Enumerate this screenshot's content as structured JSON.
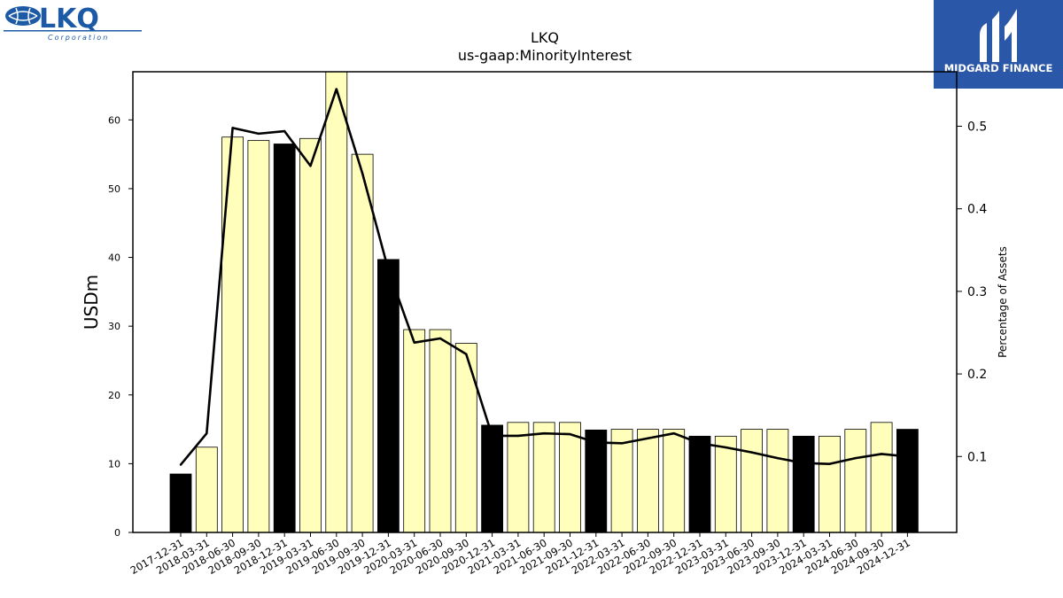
{
  "brand": {
    "company_logo_text": "LKQ",
    "company_logo_subtext": "Corporation",
    "watermark_text": "MIDGARD FINANCE"
  },
  "colors": {
    "annual_bar": "#000000",
    "quarter_bar": "#ffffbb",
    "line": "#000000",
    "watermark_bg": "#2b57a8",
    "logo_blue": "#1d5aa6"
  },
  "chart_data": {
    "type": "bar",
    "title": "LKQ",
    "subtitle": "us-gaap:MinorityInterest",
    "ylabel": "USDm",
    "y2label": "Percentage of Assets",
    "ylim": [
      0,
      67
    ],
    "y2lim": [
      0.008,
      0.566
    ],
    "yticks": [
      0,
      10,
      20,
      30,
      40,
      50,
      60
    ],
    "y2ticks": [
      0.1,
      0.2,
      0.3,
      0.4,
      0.5
    ],
    "categories": [
      "2017-12-31",
      "2018-03-31",
      "2018-06-30",
      "2018-09-30",
      "2018-12-31",
      "2019-03-31",
      "2019-06-30",
      "2019-09-30",
      "2019-12-31",
      "2020-03-31",
      "2020-06-30",
      "2020-09-30",
      "2020-12-31",
      "2021-03-31",
      "2021-06-30",
      "2021-09-30",
      "2021-12-31",
      "2022-03-31",
      "2022-06-30",
      "2022-09-30",
      "2022-12-31",
      "2023-03-31",
      "2023-06-30",
      "2023-09-30",
      "2023-12-31",
      "2024-03-31",
      "2024-06-30",
      "2024-09-30",
      "2024-12-31"
    ],
    "series": [
      {
        "axis": "left",
        "kind": "bar",
        "values": [
          8.5,
          12.4,
          57.5,
          57.0,
          56.5,
          57.3,
          68.0,
          55.0,
          39.7,
          29.5,
          29.5,
          27.5,
          15.6,
          16.0,
          16.0,
          16.0,
          14.9,
          15.0,
          15.0,
          15.0,
          14.0,
          14.0,
          15.0,
          15.0,
          14.0,
          14.0,
          15.0,
          16.0,
          15.0
        ],
        "annual": [
          true,
          false,
          false,
          false,
          true,
          false,
          false,
          false,
          true,
          false,
          false,
          false,
          true,
          false,
          false,
          false,
          true,
          false,
          false,
          false,
          true,
          false,
          false,
          false,
          true,
          false,
          false,
          false,
          true
        ]
      },
      {
        "axis": "right",
        "kind": "line",
        "values": [
          0.09,
          0.128,
          0.498,
          0.491,
          0.494,
          0.452,
          0.545,
          0.443,
          0.326,
          0.238,
          0.243,
          0.224,
          0.125,
          0.125,
          0.128,
          0.127,
          0.117,
          0.116,
          0.122,
          0.128,
          0.116,
          0.111,
          0.105,
          0.098,
          0.092,
          0.091,
          0.098,
          0.103,
          0.1
        ]
      }
    ],
    "grid": false,
    "legend": "none"
  }
}
